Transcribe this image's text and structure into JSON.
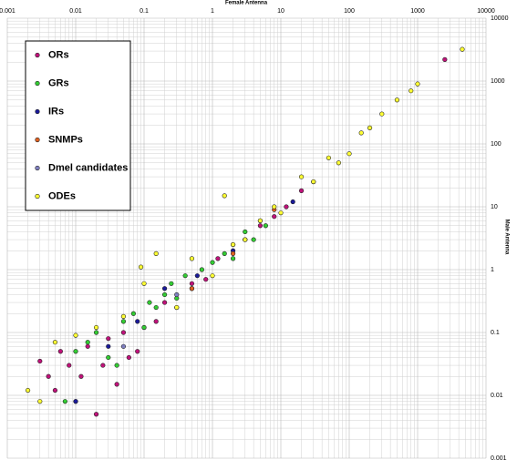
{
  "chart_data": {
    "type": "scatter",
    "x_label": "Female Antenna",
    "y_label": "Male Antenna",
    "xscale": "log",
    "yscale": "log",
    "grid": true,
    "minor_grid": true,
    "legend": "upper left",
    "xlim": [
      0.001,
      10000
    ],
    "ylim": [
      0.001,
      10000
    ],
    "xticks": [
      0.001,
      0.01,
      0.1,
      1,
      10,
      100,
      1000,
      10000
    ],
    "yticks": [
      0.001,
      0.01,
      0.1,
      1,
      10,
      100,
      1000,
      10000
    ],
    "series": [
      {
        "name": "ORs",
        "color": "#c0127a",
        "x": [
          0.003,
          0.004,
          0.005,
          0.006,
          0.008,
          0.01,
          0.012,
          0.015,
          0.02,
          0.025,
          0.03,
          0.04,
          0.05,
          0.06,
          0.08,
          0.1,
          0.15,
          0.2,
          0.3,
          0.5,
          0.8,
          1.2,
          2,
          3,
          5,
          8,
          12,
          20,
          30,
          2500
        ],
        "values": [
          0.035,
          0.02,
          0.012,
          0.05,
          0.03,
          0.008,
          0.02,
          0.06,
          0.005,
          0.03,
          0.08,
          0.015,
          0.1,
          0.04,
          0.05,
          0.12,
          0.15,
          0.3,
          0.25,
          0.6,
          0.7,
          1.5,
          2.5,
          3,
          5,
          7,
          10,
          18,
          25,
          2200
        ]
      },
      {
        "name": "GRs",
        "color": "#33cc33",
        "x": [
          0.007,
          0.01,
          0.015,
          0.02,
          0.03,
          0.04,
          0.05,
          0.07,
          0.1,
          0.12,
          0.15,
          0.2,
          0.25,
          0.3,
          0.4,
          0.5,
          0.7,
          1,
          1.5,
          2,
          3,
          4,
          6
        ],
        "values": [
          0.008,
          0.05,
          0.07,
          0.1,
          0.04,
          0.03,
          0.15,
          0.2,
          0.12,
          0.3,
          0.25,
          0.4,
          0.6,
          0.35,
          0.8,
          0.5,
          1,
          1.3,
          1.8,
          1.5,
          4,
          3,
          5
        ]
      },
      {
        "name": "IRs",
        "color": "#1a1a99",
        "x": [
          0.01,
          0.03,
          0.08,
          0.2,
          0.6,
          2,
          5,
          15
        ],
        "values": [
          0.008,
          0.06,
          0.15,
          0.5,
          0.8,
          2,
          6,
          12
        ]
      },
      {
        "name": "SNMPs",
        "color": "#e06020",
        "x": [
          0.5,
          2,
          8
        ],
        "values": [
          0.5,
          1.8,
          9
        ]
      },
      {
        "name": "Dmel candidates",
        "color": "#8080c0",
        "x": [
          0.05,
          0.3,
          3
        ],
        "values": [
          0.06,
          0.4,
          3
        ]
      },
      {
        "name": "ODEs",
        "color": "#ffff33",
        "x": [
          0.002,
          0.003,
          0.005,
          0.01,
          0.02,
          0.05,
          0.1,
          0.15,
          0.3,
          0.5,
          1,
          2,
          3,
          5,
          8,
          10,
          20,
          30,
          50,
          70,
          100,
          150,
          200,
          300,
          500,
          800,
          1000,
          4500,
          1.5,
          0.09
        ],
        "values": [
          0.012,
          0.008,
          0.07,
          0.09,
          0.12,
          0.18,
          0.6,
          1.8,
          0.25,
          1.5,
          0.8,
          2.5,
          3,
          6,
          10,
          8,
          30,
          25,
          60,
          50,
          70,
          150,
          180,
          300,
          500,
          700,
          900,
          3200,
          15,
          1.1
        ]
      }
    ]
  }
}
